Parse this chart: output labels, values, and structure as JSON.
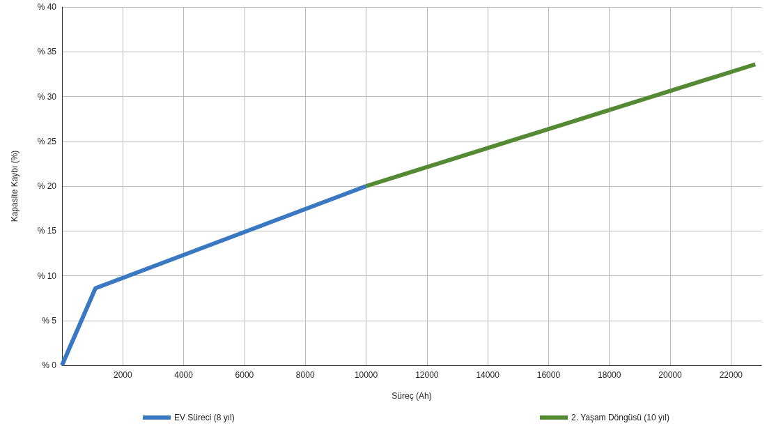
{
  "chart_data": {
    "type": "line",
    "xlabel": "Süreç (Ah)",
    "ylabel": "Kapasite Kaybı (%)",
    "xlim": [
      0,
      23000
    ],
    "xticks": [
      2000,
      4000,
      6000,
      8000,
      10000,
      12000,
      14000,
      16000,
      18000,
      20000,
      22000
    ],
    "ylim": [
      0,
      40
    ],
    "yticks": [
      {
        "value": 0,
        "label": "% 0"
      },
      {
        "value": 5,
        "label": "% 5"
      },
      {
        "value": 10,
        "label": "% 10"
      },
      {
        "value": 15,
        "label": "% 15"
      },
      {
        "value": 20,
        "label": "% 20"
      },
      {
        "value": 25,
        "label": "% 25"
      },
      {
        "value": 30,
        "label": "% 30"
      },
      {
        "value": 35,
        "label": "% 35"
      },
      {
        "value": 40,
        "label": "% 40"
      }
    ],
    "series": [
      {
        "name": "EV Süreci (8 yıl)",
        "color": "#3a78c2",
        "x": [
          0,
          1100,
          10000
        ],
        "values": [
          0,
          8.6,
          20
        ]
      },
      {
        "name": "2. Yaşam Döngüsü (10 yıl)",
        "color": "#548a34",
        "x": [
          10000,
          22800
        ],
        "values": [
          20,
          33.6
        ]
      }
    ],
    "grid": true,
    "legend": "bottom",
    "marker": "none",
    "line_style": "solid"
  }
}
